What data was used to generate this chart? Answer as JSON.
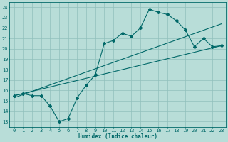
{
  "xlabel": "Humidex (Indice chaleur)",
  "bg_color": "#b8ddd8",
  "grid_color": "#90c0bc",
  "line_color": "#006868",
  "xlim": [
    -0.5,
    23.5
  ],
  "ylim": [
    12.5,
    24.5
  ],
  "xticks": [
    0,
    1,
    2,
    3,
    4,
    5,
    6,
    7,
    8,
    9,
    10,
    11,
    12,
    13,
    14,
    15,
    16,
    17,
    18,
    19,
    20,
    21,
    22,
    23
  ],
  "yticks": [
    13,
    14,
    15,
    16,
    17,
    18,
    19,
    20,
    21,
    22,
    23,
    24
  ],
  "line1_x": [
    0,
    1,
    2,
    3,
    4,
    5,
    6,
    7,
    8,
    9,
    10,
    11,
    12,
    13,
    14,
    15,
    16,
    17,
    18,
    19,
    20,
    21,
    22,
    23
  ],
  "line1_y": [
    15.5,
    15.7,
    15.5,
    15.5,
    14.5,
    13.0,
    13.3,
    15.3,
    16.5,
    17.5,
    20.5,
    20.8,
    21.5,
    21.2,
    22.0,
    23.8,
    23.5,
    23.3,
    22.7,
    21.8,
    20.2,
    21.0,
    20.2,
    20.3
  ],
  "line2_x": [
    0,
    23
  ],
  "line2_y": [
    15.5,
    20.3
  ],
  "line3_x": [
    0,
    23
  ],
  "line3_y": [
    15.3,
    22.4
  ],
  "marker_x": [
    0,
    1,
    2,
    3,
    4,
    5,
    6,
    7,
    8,
    9,
    10,
    11,
    12,
    13,
    14,
    15,
    16,
    17,
    18,
    19,
    20,
    21,
    22,
    23
  ],
  "marker_y": [
    15.5,
    15.7,
    15.5,
    15.5,
    14.5,
    13.0,
    13.3,
    15.3,
    16.5,
    17.5,
    20.5,
    20.8,
    21.5,
    21.2,
    22.0,
    23.8,
    23.5,
    23.3,
    22.7,
    21.8,
    20.2,
    21.0,
    20.2,
    20.3
  ]
}
